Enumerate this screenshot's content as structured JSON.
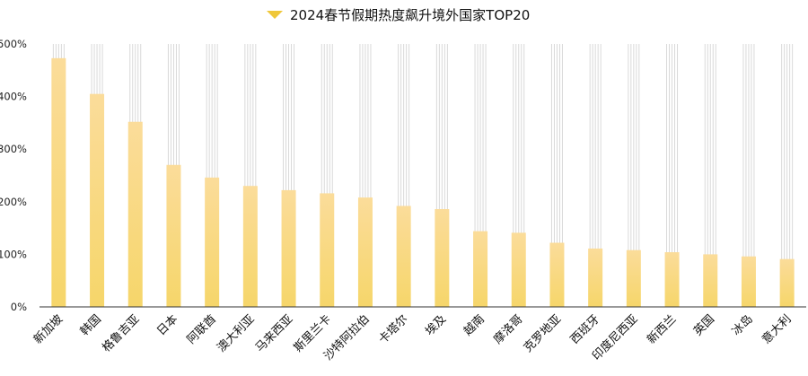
{
  "chart_data": {
    "type": "bar",
    "legend": "2024春节假期热度飙升境外国家TOP20",
    "legend_position": "top-center",
    "categories": [
      "新加坡",
      "韩国",
      "格鲁吉亚",
      "日本",
      "阿联酋",
      "澳大利亚",
      "马来西亚",
      "斯里兰卡",
      "沙特阿拉伯",
      "卡塔尔",
      "埃及",
      "越南",
      "摩洛哥",
      "克罗地亚",
      "西班牙",
      "印度尼西亚",
      "新西兰",
      "英国",
      "冰岛",
      "意大利"
    ],
    "series": [
      {
        "name": "2024春节假期热度飙升境外国家TOP20",
        "values": [
          473,
          405,
          352,
          270,
          246,
          230,
          222,
          216,
          208,
          192,
          186,
          144,
          141,
          122,
          111,
          108,
          104,
          100,
          96,
          91
        ]
      }
    ],
    "ylim": [
      0,
      500
    ],
    "yticks": [
      "0%",
      "100%",
      "200%",
      "300%",
      "400%",
      "500%"
    ],
    "ytick_values": [
      0,
      100,
      200,
      300,
      400,
      500
    ],
    "grid": true,
    "colors": {
      "bar_top": "#FBDC9A",
      "bar_bottom": "#F6D66A",
      "legend_marker": "#EFC73A",
      "grid": "#d9d9d9",
      "axis": "#333333"
    }
  }
}
